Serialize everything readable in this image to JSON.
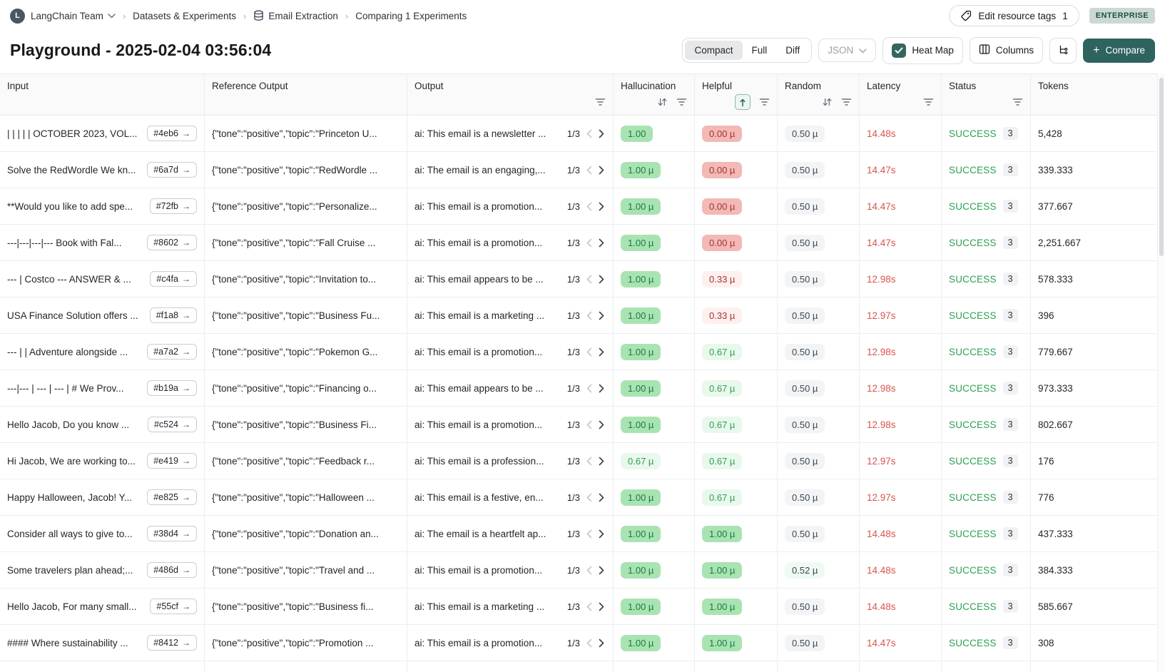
{
  "breadcrumb": {
    "team": "LangChain Team",
    "datasets_label": "Datasets & Experiments",
    "dataset_name": "Email Extraction",
    "current": "Comparing 1 Experiments"
  },
  "top_actions": {
    "edit_tags_label": "Edit resource tags",
    "edit_tags_count": "1",
    "plan_badge": "ENTERPRISE"
  },
  "title": "Playground - 2025-02-04 03:56:04",
  "toolbar": {
    "view_modes": [
      "Compact",
      "Full",
      "Diff"
    ],
    "selected_view": "Compact",
    "json_label": "JSON",
    "heatmap_label": "Heat Map",
    "heatmap_checked": true,
    "columns_label": "Columns",
    "compare_label": "Compare"
  },
  "colors": {
    "accent_teal": "#2e635e",
    "success_green": "#2aa052",
    "latency_red": "#d65550",
    "heat_green_strong": "#a9e3b2",
    "heat_green_light": "#e9f8ec",
    "heat_red_strong": "#f3b9b6",
    "heat_red_light": "#fdf0ee",
    "heat_gray": "#f3f4f6"
  },
  "table": {
    "columns": [
      {
        "key": "input",
        "label": "Input",
        "icons": []
      },
      {
        "key": "reference_output",
        "label": "Reference Output",
        "icons": []
      },
      {
        "key": "output",
        "label": "Output",
        "icons": [
          "filter"
        ]
      },
      {
        "key": "hallucination",
        "label": "Hallucination",
        "icons": [
          "sort",
          "filter"
        ]
      },
      {
        "key": "helpful",
        "label": "Helpful",
        "icons": [
          "sort-asc-active",
          "filter"
        ]
      },
      {
        "key": "random",
        "label": "Random",
        "icons": [
          "sort",
          "filter"
        ]
      },
      {
        "key": "latency",
        "label": "Latency",
        "icons": [
          "filter"
        ]
      },
      {
        "key": "status",
        "label": "Status",
        "icons": [
          "filter"
        ]
      },
      {
        "key": "tokens",
        "label": "Tokens",
        "icons": []
      }
    ],
    "rows": [
      {
        "input": "| | | | | OCTOBER 2023, VOL...",
        "id": "#4eb6",
        "ref": "{\"tone\":\"positive\",\"topic\":\"Princeton U...",
        "output": "ai: This email is a newsletter ...",
        "pager": "1/3",
        "hallucination": {
          "text": "1.00",
          "tone": "green-strong"
        },
        "helpful": {
          "text": "0.00 µ",
          "tone": "red-strong"
        },
        "random": {
          "text": "0.50 µ",
          "tone": "gray"
        },
        "latency": "14.48s",
        "status": "SUCCESS",
        "runs": "3",
        "tokens": "5,428"
      },
      {
        "input": "Solve the RedWordle We kn...",
        "id": "#6a7d",
        "ref": "{\"tone\":\"positive\",\"topic\":\"RedWordle ...",
        "output": "ai: The email is an engaging,...",
        "pager": "1/3",
        "hallucination": {
          "text": "1.00 µ",
          "tone": "green-strong"
        },
        "helpful": {
          "text": "0.00 µ",
          "tone": "red-strong"
        },
        "random": {
          "text": "0.50 µ",
          "tone": "gray"
        },
        "latency": "14.47s",
        "status": "SUCCESS",
        "runs": "3",
        "tokens": "339.333"
      },
      {
        "input": "**Would you like to add spe...",
        "id": "#72fb",
        "ref": "{\"tone\":\"positive\",\"topic\":\"Personalize...",
        "output": "ai: This email is a promotion...",
        "pager": "1/3",
        "hallucination": {
          "text": "1.00 µ",
          "tone": "green-strong"
        },
        "helpful": {
          "text": "0.00 µ",
          "tone": "red-strong"
        },
        "random": {
          "text": "0.50 µ",
          "tone": "gray"
        },
        "latency": "14.47s",
        "status": "SUCCESS",
        "runs": "3",
        "tokens": "377.667"
      },
      {
        "input": "---|---|---|--- Book with Fal...",
        "id": "#8602",
        "ref": "{\"tone\":\"positive\",\"topic\":\"Fall Cruise ...",
        "output": "ai: This email is a promotion...",
        "pager": "1/3",
        "hallucination": {
          "text": "1.00 µ",
          "tone": "green-strong"
        },
        "helpful": {
          "text": "0.00 µ",
          "tone": "red-strong"
        },
        "random": {
          "text": "0.50 µ",
          "tone": "gray"
        },
        "latency": "14.47s",
        "status": "SUCCESS",
        "runs": "3",
        "tokens": "2,251.667"
      },
      {
        "input": "--- | Costco --- ANSWER & ...",
        "id": "#c4fa",
        "ref": "{\"tone\":\"positive\",\"topic\":\"Invitation to...",
        "output": "ai: This email appears to be ...",
        "pager": "1/3",
        "hallucination": {
          "text": "1.00 µ",
          "tone": "green-strong"
        },
        "helpful": {
          "text": "0.33 µ",
          "tone": "red-light"
        },
        "random": {
          "text": "0.50 µ",
          "tone": "gray"
        },
        "latency": "12.98s",
        "status": "SUCCESS",
        "runs": "3",
        "tokens": "578.333"
      },
      {
        "input": "USA Finance Solution offers ...",
        "id": "#f1a8",
        "ref": "{\"tone\":\"positive\",\"topic\":\"Business Fu...",
        "output": "ai: This email is a marketing ...",
        "pager": "1/3",
        "hallucination": {
          "text": "1.00 µ",
          "tone": "green-strong"
        },
        "helpful": {
          "text": "0.33 µ",
          "tone": "red-light"
        },
        "random": {
          "text": "0.50 µ",
          "tone": "gray"
        },
        "latency": "12.97s",
        "status": "SUCCESS",
        "runs": "3",
        "tokens": "396"
      },
      {
        "input": "--- | | Adventure alongside ...",
        "id": "#a7a2",
        "ref": "{\"tone\":\"positive\",\"topic\":\"Pokemon G...",
        "output": "ai: This email is a promotion...",
        "pager": "1/3",
        "hallucination": {
          "text": "1.00 µ",
          "tone": "green-strong"
        },
        "helpful": {
          "text": "0.67 µ",
          "tone": "green-light"
        },
        "random": {
          "text": "0.50 µ",
          "tone": "gray"
        },
        "latency": "12.98s",
        "status": "SUCCESS",
        "runs": "3",
        "tokens": "779.667"
      },
      {
        "input": "---|--- | --- | --- | # We Prov...",
        "id": "#b19a",
        "ref": "{\"tone\":\"positive\",\"topic\":\"Financing o...",
        "output": "ai: This email appears to be ...",
        "pager": "1/3",
        "hallucination": {
          "text": "1.00 µ",
          "tone": "green-strong"
        },
        "helpful": {
          "text": "0.67 µ",
          "tone": "green-light"
        },
        "random": {
          "text": "0.50 µ",
          "tone": "gray"
        },
        "latency": "12.98s",
        "status": "SUCCESS",
        "runs": "3",
        "tokens": "973.333"
      },
      {
        "input": "Hello Jacob, Do you know ...",
        "id": "#c524",
        "ref": "{\"tone\":\"positive\",\"topic\":\"Business Fi...",
        "output": "ai: This email is a promotion...",
        "pager": "1/3",
        "hallucination": {
          "text": "1.00 µ",
          "tone": "green-strong"
        },
        "helpful": {
          "text": "0.67 µ",
          "tone": "green-light"
        },
        "random": {
          "text": "0.50 µ",
          "tone": "gray"
        },
        "latency": "12.98s",
        "status": "SUCCESS",
        "runs": "3",
        "tokens": "802.667"
      },
      {
        "input": "Hi Jacob, We are working to...",
        "id": "#e419",
        "ref": "{\"tone\":\"positive\",\"topic\":\"Feedback r...",
        "output": "ai: This email is a profession...",
        "pager": "1/3",
        "hallucination": {
          "text": "0.67 µ",
          "tone": "green-light"
        },
        "helpful": {
          "text": "0.67 µ",
          "tone": "green-light"
        },
        "random": {
          "text": "0.50 µ",
          "tone": "gray"
        },
        "latency": "12.97s",
        "status": "SUCCESS",
        "runs": "3",
        "tokens": "176"
      },
      {
        "input": "Happy Halloween, Jacob! Y...",
        "id": "#e825",
        "ref": "{\"tone\":\"positive\",\"topic\":\"Halloween ...",
        "output": "ai: This email is a festive, en...",
        "pager": "1/3",
        "hallucination": {
          "text": "1.00 µ",
          "tone": "green-strong"
        },
        "helpful": {
          "text": "0.67 µ",
          "tone": "green-light"
        },
        "random": {
          "text": "0.50 µ",
          "tone": "gray"
        },
        "latency": "12.97s",
        "status": "SUCCESS",
        "runs": "3",
        "tokens": "776"
      },
      {
        "input": "Consider all ways to give to...",
        "id": "#38d4",
        "ref": "{\"tone\":\"positive\",\"topic\":\"Donation an...",
        "output": "ai: The email is a heartfelt ap...",
        "pager": "1/3",
        "hallucination": {
          "text": "1.00 µ",
          "tone": "green-strong"
        },
        "helpful": {
          "text": "1.00 µ",
          "tone": "green-strong"
        },
        "random": {
          "text": "0.50 µ",
          "tone": "gray"
        },
        "latency": "14.48s",
        "status": "SUCCESS",
        "runs": "3",
        "tokens": "437.333"
      },
      {
        "input": "Some travelers plan ahead;...",
        "id": "#486d",
        "ref": "{\"tone\":\"positive\",\"topic\":\"Travel and ...",
        "output": "ai: This email is a promotion...",
        "pager": "1/3",
        "hallucination": {
          "text": "1.00 µ",
          "tone": "green-strong"
        },
        "helpful": {
          "text": "1.00 µ",
          "tone": "green-strong"
        },
        "random": {
          "text": "0.52 µ",
          "tone": "green-tint"
        },
        "latency": "14.48s",
        "status": "SUCCESS",
        "runs": "3",
        "tokens": "384.333"
      },
      {
        "input": "Hello Jacob, For many small...",
        "id": "#55cf",
        "ref": "{\"tone\":\"positive\",\"topic\":\"Business fi...",
        "output": "ai: This email is a marketing ...",
        "pager": "1/3",
        "hallucination": {
          "text": "1.00 µ",
          "tone": "green-strong"
        },
        "helpful": {
          "text": "1.00 µ",
          "tone": "green-strong"
        },
        "random": {
          "text": "0.50 µ",
          "tone": "gray"
        },
        "latency": "14.48s",
        "status": "SUCCESS",
        "runs": "3",
        "tokens": "585.667"
      },
      {
        "input": "#### Where sustainability ...",
        "id": "#8412",
        "ref": "{\"tone\":\"positive\",\"topic\":\"Promotion ...",
        "output": "ai: This email is a promotion...",
        "pager": "1/3",
        "hallucination": {
          "text": "1.00 µ",
          "tone": "green-strong"
        },
        "helpful": {
          "text": "1.00 µ",
          "tone": "green-strong"
        },
        "random": {
          "text": "0.50 µ",
          "tone": "gray"
        },
        "latency": "14.47s",
        "status": "SUCCESS",
        "runs": "3",
        "tokens": "308"
      }
    ]
  }
}
